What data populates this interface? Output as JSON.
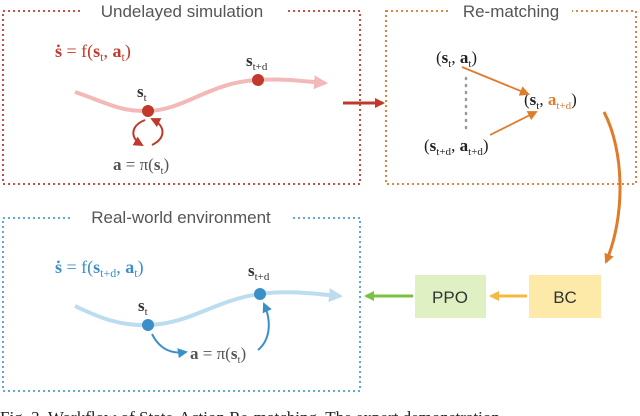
{
  "panels": {
    "undelayed": {
      "title": "Undelayed simulation",
      "color": "#c0392b"
    },
    "rematching": {
      "title": "Re-matching",
      "color": "#d9742a"
    },
    "real": {
      "title": "Real-world environment",
      "color": "#4a9fd4"
    }
  },
  "undelayed": {
    "dynamics": {
      "sdot": "ṡ",
      "eq": " = f(",
      "s": "s",
      "sub_t": "t",
      "comma": ", ",
      "a": "a",
      "sub_t2": "t",
      "close": ")"
    },
    "state_label": {
      "s": "s",
      "sub": "t"
    },
    "delayed_state_label": {
      "s": "s",
      "sub": "t+d"
    },
    "policy": {
      "a": "a",
      "eq": " = π(",
      "s": "s",
      "sub": "t",
      "close": ")"
    }
  },
  "rematching": {
    "pair_top": {
      "open": "(",
      "s": "s",
      "s_sub": "t",
      "comma": ", ",
      "a": "a",
      "a_sub": "t",
      "close": ")"
    },
    "pair_bottom": {
      "open": "(",
      "s": "s",
      "s_sub": "t+d",
      "comma": ", ",
      "a": "a",
      "a_sub": "t+d",
      "close": ")"
    },
    "pair_result": {
      "open": "(",
      "s": "s",
      "s_sub": "t",
      "comma": ", ",
      "a": "a",
      "a_sub": "t+d",
      "close": ")"
    }
  },
  "real": {
    "dynamics": {
      "sdot": "ṡ",
      "eq": " = f(",
      "s": "s",
      "sub_s": "t+d",
      "comma": ", ",
      "a": "a",
      "sub_a": "t",
      "close": ")"
    },
    "state_label": {
      "s": "s",
      "sub": "t"
    },
    "delayed_state_label": {
      "s": "s",
      "sub": "t+d"
    },
    "policy": {
      "a": "a",
      "eq": " = π(",
      "s": "s",
      "sub": "t",
      "close": ")"
    }
  },
  "pipeline": {
    "bc": {
      "label": "BC",
      "fill": "#fdeaa8"
    },
    "ppo": {
      "label": "PPO",
      "fill": "#dff0c2"
    }
  },
  "caption": "Fig. 3.   Workflow of State-Action Re-matching. The expert demonstration"
}
